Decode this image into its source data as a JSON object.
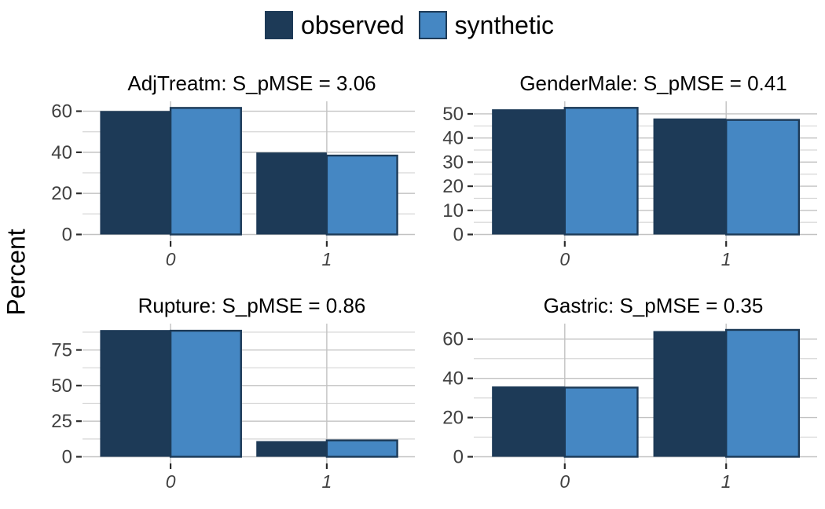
{
  "chart_data": {
    "type": "bar",
    "title": "",
    "ylabel": "Percent",
    "categories": [
      "0",
      "1"
    ],
    "legend": [
      "observed",
      "synthetic"
    ],
    "legend_position": "top",
    "grid": true,
    "colors": {
      "observed": "#1d3a57",
      "synthetic": "#4587c3",
      "synthetic_stroke": "#1d3a57",
      "grid_major": "#c2c2c2",
      "grid_minor": "#d6d6d6",
      "tick": "#2b2b2b",
      "axis_text": "#404040",
      "title_text": "#000000"
    },
    "panels": [
      {
        "variable": "AdjTreatm",
        "s_pmse": "3.06",
        "title": "AdjTreatm: S_pMSE = 3.06",
        "series": [
          {
            "name": "observed",
            "values": [
              60.1,
              39.9
            ]
          },
          {
            "name": "synthetic",
            "values": [
              61.6,
              38.4
            ]
          }
        ],
        "yticks_major": [
          0,
          20,
          40,
          60
        ],
        "yticks_minor": [
          10,
          30,
          50
        ],
        "ylim": [
          0,
          64.8
        ]
      },
      {
        "variable": "GenderMale",
        "s_pmse": "0.41",
        "title": "GenderMale: S_pMSE = 0.41",
        "series": [
          {
            "name": "observed",
            "values": [
              51.9,
              48.1
            ]
          },
          {
            "name": "synthetic",
            "values": [
              52.5,
              47.5
            ]
          }
        ],
        "yticks_major": [
          0,
          10,
          20,
          30,
          40,
          50
        ],
        "yticks_minor": [
          5,
          15,
          25,
          35,
          45
        ],
        "ylim": [
          0,
          55.2
        ]
      },
      {
        "variable": "Rupture",
        "s_pmse": "0.86",
        "title": "Rupture: S_pMSE = 0.86",
        "series": [
          {
            "name": "observed",
            "values": [
              89.0,
              11.0
            ]
          },
          {
            "name": "synthetic",
            "values": [
              88.5,
              11.5
            ]
          }
        ],
        "yticks_major": [
          0,
          25,
          50,
          75
        ],
        "yticks_minor": [
          12.5,
          37.5,
          62.5,
          87.5
        ],
        "ylim": [
          0,
          93.5
        ]
      },
      {
        "variable": "Gastric",
        "s_pmse": "0.35",
        "title": "Gastric: S_pMSE = 0.35",
        "series": [
          {
            "name": "observed",
            "values": [
              35.9,
              64.1
            ]
          },
          {
            "name": "synthetic",
            "values": [
              35.3,
              64.7
            ]
          }
        ],
        "yticks_major": [
          0,
          20,
          40,
          60
        ],
        "yticks_minor": [
          10,
          30,
          50
        ],
        "ylim": [
          0,
          67.9
        ]
      }
    ]
  }
}
